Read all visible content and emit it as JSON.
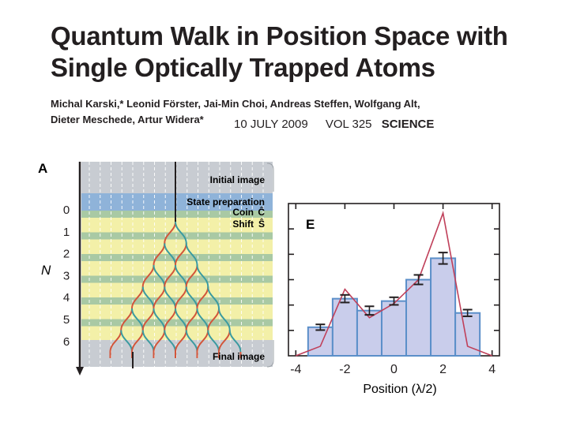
{
  "paper": {
    "title_line1": "Quantum Walk in Position Space with",
    "title_line2": "Single Optically Trapped Atoms",
    "authors_line1": "Michal Karski,* Leonid Förster, Jai-Min Choi, Andreas Steffen, Wolfgang Alt,",
    "authors_line2": "Dieter Meschede, Artur Widera*",
    "date": "10 JULY 2009",
    "volume": "VOL 325",
    "journal": "SCIENCE"
  },
  "panel_a": {
    "label": "A",
    "axis_label": "N",
    "step_labels": [
      "0",
      "1",
      "2",
      "3",
      "4",
      "5",
      "6"
    ],
    "band_labels": {
      "initial": "Initial image",
      "state_prep": "State preparation",
      "coin": "Coin",
      "coin_symbol": "Ĉ",
      "shift": "Shift",
      "shift_symbol": "Ŝ",
      "final": "Final image"
    },
    "colors": {
      "gray_band": "#c8ccd2",
      "blue_band": "#8fb3d9",
      "yellow_band": "#f3f0a8",
      "green_band": "#a9c9a4",
      "path_red": "#d2553a",
      "path_teal": "#3a9aa0"
    }
  },
  "chart_data": {
    "type": "bar",
    "panel_label": "E",
    "xlabel": "Position (λ/2)",
    "ylabel": "",
    "xlim": [
      -4.3,
      4.3
    ],
    "ylim": [
      0,
      0.32
    ],
    "x_ticks": [
      "-4",
      "-2",
      "0",
      "2",
      "4"
    ],
    "bars": {
      "x": [
        -3,
        -2,
        -1,
        0,
        1,
        2,
        3
      ],
      "values": [
        0.06,
        0.12,
        0.095,
        0.115,
        0.16,
        0.205,
        0.09
      ],
      "errors": [
        0.006,
        0.008,
        0.009,
        0.008,
        0.01,
        0.012,
        0.007
      ]
    },
    "theory_line": {
      "x": [
        -4,
        -3,
        -2,
        -1,
        0,
        1,
        2,
        3,
        4
      ],
      "y": [
        0.0,
        0.02,
        0.14,
        0.08,
        0.11,
        0.16,
        0.3,
        0.02,
        0.0
      ]
    },
    "colors": {
      "bar_fill": "#c9cdeb",
      "bar_stroke": "#5b8fc9",
      "line": "#c0405a"
    }
  }
}
